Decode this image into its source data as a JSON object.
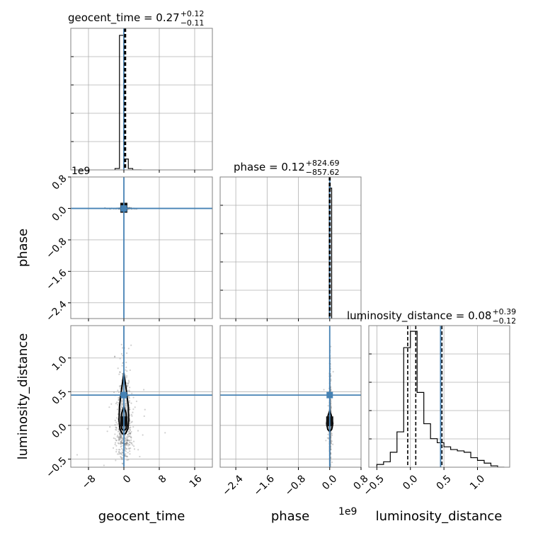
{
  "chart_data": {
    "type": "corner",
    "parameters": [
      "geocent_time",
      "phase",
      "luminosity_distance"
    ],
    "axis_labels": {
      "geocent_time": "geocent_time",
      "phase": "phase",
      "luminosity_distance": "luminosity_distance"
    },
    "titles": {
      "geocent_time": {
        "name": "geocent_time",
        "median": "0.27",
        "plus": "+0.12",
        "minus": "−0.11"
      },
      "phase": {
        "name": "phase",
        "median": "0.12",
        "plus": "+824.69",
        "minus": "−857.62"
      },
      "luminosity_distance": {
        "name": "luminosity_distance",
        "median": "0.08",
        "plus": "+0.39",
        "minus": "−0.12"
      }
    },
    "ranges": {
      "geocent_time": [
        -12,
        20
      ],
      "phase": [
        -2.8,
        0.8
      ],
      "luminosity_distance": [
        -0.62,
        1.48
      ]
    },
    "ticks": {
      "geocent_time": {
        "values": [
          -8,
          0,
          8,
          16
        ],
        "labels": [
          "−8",
          "0",
          "8",
          "16"
        ]
      },
      "phase": {
        "values": [
          -2.4,
          -1.6,
          -0.8,
          0.0,
          0.8
        ],
        "labels": [
          "−2.4",
          "−1.6",
          "−0.8",
          "0.0",
          "0.8"
        ],
        "offset": "1e9"
      },
      "luminosity_distance": {
        "values": [
          -0.5,
          0.0,
          0.5,
          1.0
        ],
        "labels": [
          "−0.5",
          "0.0",
          "0.5",
          "1.0"
        ]
      }
    },
    "truths": {
      "geocent_time": 0.0,
      "phase": 0.0,
      "luminosity_distance": 0.45
    },
    "quantiles": {
      "geocent_time": [
        0.16,
        0.27,
        0.39
      ],
      "phase": [
        -0.01,
        0.0,
        0.01
      ],
      "luminosity_distance": [
        -0.04,
        0.08,
        0.47
      ]
    },
    "histograms": {
      "geocent_time": {
        "edges": [
          -2,
          -1,
          0,
          1,
          2,
          3,
          4
        ],
        "counts": [
          0.01,
          0.99,
          0.08,
          0.01,
          0,
          0
        ]
      },
      "phase": {
        "edges": [
          -0.01,
          0.01,
          0.05
        ],
        "counts": [
          0.98,
          0.96
        ]
      },
      "luminosity_distance": {
        "edges": [
          -0.5,
          -0.4,
          -0.3,
          -0.2,
          -0.1,
          0.0,
          0.1,
          0.2,
          0.3,
          0.4,
          0.5,
          0.6,
          0.7,
          0.8,
          0.9,
          1.0,
          1.1,
          1.2,
          1.3,
          1.4
        ],
        "counts": [
          0.02,
          0.04,
          0.11,
          0.26,
          0.88,
          1.0,
          0.55,
          0.32,
          0.21,
          0.18,
          0.15,
          0.13,
          0.12,
          0.11,
          0.07,
          0.05,
          0.03,
          0.01,
          0
        ]
      }
    },
    "contours": {
      "geocent_time_vs_luminosity_distance": [
        [
          [
            0.0,
            0.78
          ],
          [
            0.6,
            0.5
          ],
          [
            1.0,
            0.28
          ],
          [
            1.1,
            0.08
          ],
          [
            0.9,
            -0.05
          ],
          [
            0.4,
            -0.12
          ],
          [
            0.0,
            -0.13
          ],
          [
            -0.4,
            -0.12
          ],
          [
            -0.9,
            -0.05
          ],
          [
            -1.1,
            0.08
          ],
          [
            -1.0,
            0.28
          ],
          [
            -0.6,
            0.5
          ]
        ],
        [
          [
            0.0,
            0.28
          ],
          [
            0.5,
            0.18
          ],
          [
            0.65,
            0.05
          ],
          [
            0.5,
            -0.05
          ],
          [
            0.0,
            -0.08
          ],
          [
            -0.5,
            -0.05
          ],
          [
            -0.65,
            0.05
          ],
          [
            -0.5,
            0.18
          ]
        ]
      ],
      "phase_vs_luminosity_distance": [
        [
          [
            0.0,
            0.22
          ],
          [
            0.04,
            0.15
          ],
          [
            0.08,
            0.03
          ],
          [
            0.05,
            -0.06
          ],
          [
            0.0,
            -0.09
          ],
          [
            -0.05,
            -0.06
          ],
          [
            -0.08,
            0.03
          ],
          [
            -0.04,
            0.15
          ]
        ]
      ]
    },
    "peaks": {
      "geocent_time_vs_phase": [
        0.0,
        0.0
      ],
      "geocent_time_vs_luminosity_distance": [
        0.0,
        0.05
      ],
      "phase_vs_luminosity_distance": [
        0.0,
        0.05
      ]
    }
  }
}
